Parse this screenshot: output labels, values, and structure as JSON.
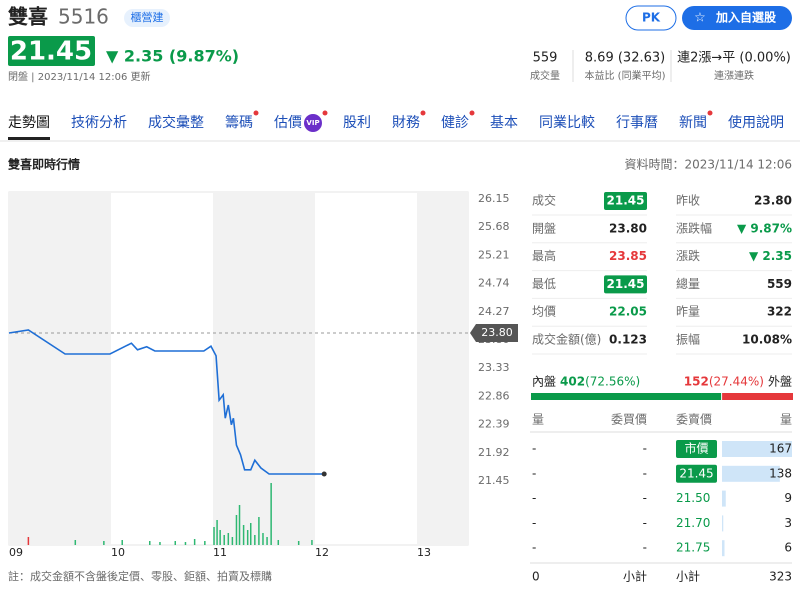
{
  "header": {
    "name": "雙喜",
    "code": "5516",
    "tag": "櫃營建",
    "buttons": [
      "PK",
      "加入自選股"
    ],
    "price": "21.45",
    "change": "▼ 2.35 (9.87%)",
    "status": "閉盤 | 2023/11/14 12:06 更新",
    "stats": [
      {
        "value": "559",
        "label": "成交量"
      },
      {
        "value": "8.69 (32.63)",
        "label": "本益比 (同業平均)"
      },
      {
        "value": "連2漲→平 (0.00%)",
        "label": "連漲連跌"
      }
    ]
  },
  "tabs": [
    {
      "label": "走勢圖",
      "active": true
    },
    {
      "label": "技術分析"
    },
    {
      "label": "成交彙整"
    },
    {
      "label": "籌碼",
      "dot": true
    },
    {
      "label": "估價",
      "badge": "VIP",
      "dot": true
    },
    {
      "label": "股利"
    },
    {
      "label": "財務",
      "dot": true
    },
    {
      "label": "健診",
      "dot": true
    },
    {
      "label": "基本"
    },
    {
      "label": "同業比較"
    },
    {
      "label": "行事曆"
    },
    {
      "label": "新聞",
      "dot": true
    },
    {
      "label": "使用說明"
    }
  ],
  "section": {
    "title": "雙喜即時行情",
    "time": "資料時間：2023/11/14 12:06"
  },
  "chart": {
    "type": "line",
    "color": "#1f6fd6",
    "x": [
      9.0,
      9.19,
      9.55,
      9.99,
      10.2,
      10.26,
      10.35,
      10.43,
      10.91,
      10.98,
      11.03,
      11.06,
      11.1,
      11.12,
      11.15,
      11.18,
      11.2,
      11.23,
      11.27,
      11.31,
      11.37,
      11.41,
      11.47,
      11.55,
      12.09
    ],
    "values": [
      23.8,
      23.85,
      23.45,
      23.45,
      23.63,
      23.52,
      23.57,
      23.5,
      23.5,
      23.58,
      23.42,
      22.68,
      22.77,
      22.38,
      22.6,
      22.27,
      22.38,
      21.93,
      21.77,
      21.52,
      21.52,
      21.68,
      21.55,
      21.45,
      21.45
    ],
    "ylim": [
      21.45,
      26.15
    ],
    "yticks": [
      26.15,
      25.68,
      25.21,
      24.74,
      24.27,
      {
        "value": 23.8,
        "label": "23.80"
      },
      23.33,
      22.86,
      22.39,
      21.92,
      21.45
    ],
    "xlim": [
      9,
      13.5
    ],
    "xticks": [
      {
        "value": 9,
        "label": "09"
      },
      10,
      11,
      12,
      13
    ],
    "reference": {
      "value": 23.8,
      "label": "23.80"
    },
    "volume": [
      {
        "color": "#e5383b",
        "x": [
          9.19
        ],
        "values": [
          8
        ]
      },
      {
        "color": "#2eb872",
        "x": [
          9.65,
          9.93,
          10.11,
          10.38,
          10.48,
          10.63,
          10.73,
          10.82,
          10.92,
          11.01,
          11.04,
          11.07,
          11.11,
          11.15,
          11.19,
          11.23,
          11.26,
          11.3,
          11.34,
          11.37,
          11.41,
          11.45,
          11.49,
          11.53,
          11.57,
          11.64,
          11.84,
          11.97
        ],
        "values": [
          5,
          4,
          5,
          4,
          3,
          4,
          3,
          6,
          4,
          18,
          25,
          15,
          10,
          12,
          8,
          30,
          40,
          20,
          15,
          22,
          10,
          28,
          12,
          8,
          62,
          5,
          4,
          5
        ]
      }
    ]
  },
  "quote": {
    "rows": [
      [
        {
          "label": "成交",
          "value": "21.45",
          "style": "badge"
        },
        {
          "label": "昨收",
          "value": "23.80"
        }
      ],
      [
        {
          "label": "開盤",
          "value": "23.80"
        },
        {
          "label": "漲跌幅",
          "value": "▼ 9.87%",
          "style": "green"
        }
      ],
      [
        {
          "label": "最高",
          "value": "23.85",
          "style": "red"
        },
        {
          "label": "漲跌",
          "value": "▼ 2.35",
          "style": "green"
        }
      ],
      [
        {
          "label": "最低",
          "value": "21.45",
          "style": "badge"
        },
        {
          "label": "總量",
          "value": "559"
        }
      ],
      [
        {
          "label": "均價",
          "value": "22.05",
          "style": "green"
        },
        {
          "label": "昨量",
          "value": "322"
        }
      ],
      [
        {
          "label": "成交金額(億)",
          "value": "0.123"
        },
        {
          "label": "振幅",
          "value": "10.08%"
        }
      ]
    ]
  },
  "order_flow": {
    "inner": {
      "label": "內盤",
      "volume": "402",
      "pct": 72.56,
      "pct_label": "(72.56%)",
      "color": "#0a9a4a"
    },
    "outer": {
      "label": "外盤",
      "volume": "152",
      "pct": 27.44,
      "pct_label": "(27.44%)",
      "color": "#e5383b"
    }
  },
  "order_book": {
    "headers": [
      "量",
      "委買價",
      "委賣價",
      "量"
    ],
    "rows": [
      {
        "bid_volume": "-",
        "bid": "-",
        "ask": "市價",
        "ask_style": "badge",
        "ask_volume": 167
      },
      {
        "bid_volume": "-",
        "bid": "-",
        "ask": "21.45",
        "ask_style": "badge",
        "ask_volume": 138
      },
      {
        "bid_volume": "-",
        "bid": "-",
        "ask": "21.50",
        "ask_volume": 9
      },
      {
        "bid_volume": "-",
        "bid": "-",
        "ask": "21.70",
        "ask_volume": 3
      },
      {
        "bid_volume": "-",
        "bid": "-",
        "ask": "21.75",
        "ask_volume": 6
      }
    ],
    "footer": [
      "0",
      "小計",
      "小計",
      "323"
    ]
  },
  "note": "註：成交金額不含盤後定價、零股、鉅額、拍賣及標購"
}
